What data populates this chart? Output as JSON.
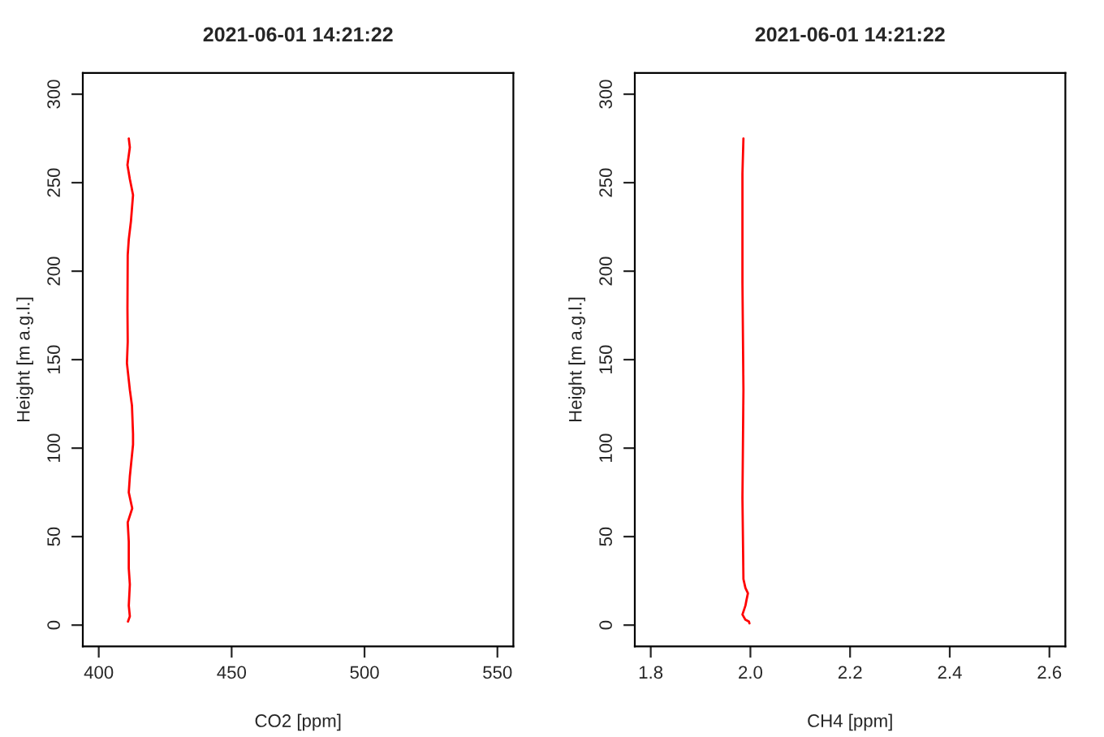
{
  "chart_data": [
    {
      "type": "line",
      "title": "2021-06-01 14:21:22",
      "xlabel": "CO2 [ppm]",
      "ylabel": "Height [m a.g.l.]",
      "xlim": [
        394,
        556
      ],
      "xticks": [
        400,
        450,
        500,
        550
      ],
      "ylim": [
        -12,
        312
      ],
      "yticks": [
        0,
        50,
        100,
        150,
        200,
        250,
        300
      ],
      "grid": false,
      "legend": false,
      "series": [
        {
          "color": "#ff0000",
          "x": [
            411.0,
            411.7,
            411.3,
            411.7,
            411.3,
            411.3,
            410.9,
            412.6,
            411.3,
            411.7,
            412.9,
            412.9,
            412.5,
            411.7,
            410.6,
            410.9,
            410.8,
            410.9,
            411.3,
            412.1,
            412.9,
            411.7,
            410.8,
            411.7,
            411.3
          ],
          "values": [
            2,
            5,
            11,
            23,
            32,
            47,
            58,
            66,
            75,
            84,
            102,
            108,
            124,
            133,
            148,
            160,
            179,
            209,
            218,
            228,
            243,
            252,
            260,
            270,
            275
          ]
        }
      ]
    },
    {
      "type": "line",
      "title": "2021-06-01 14:21:22",
      "xlabel": "CH4 [ppm]",
      "ylabel": "Height [m a.g.l.]",
      "xlim": [
        1.768,
        2.632
      ],
      "xticks": [
        {
          "value": 1.8,
          "label": "1.8"
        },
        {
          "value": 2.0,
          "label": "2.0"
        },
        {
          "value": 2.2,
          "label": "2.2"
        },
        {
          "value": 2.4,
          "label": "2.4"
        },
        {
          "value": 2.6,
          "label": "2.6"
        }
      ],
      "ylim": [
        -12,
        312
      ],
      "yticks": [
        0,
        50,
        100,
        150,
        200,
        250,
        300
      ],
      "grid": false,
      "legend": false,
      "series": [
        {
          "color": "#ff0000",
          "x": [
            1.998,
            1.997,
            1.99,
            1.984,
            1.99,
            1.992,
            1.995,
            1.99,
            1.986,
            1.984,
            1.986,
            1.984,
            1.984,
            1.986
          ],
          "values": [
            1,
            2,
            3,
            6,
            11,
            14,
            18,
            21,
            26,
            72,
            133,
            194,
            255,
            275
          ]
        }
      ]
    }
  ]
}
